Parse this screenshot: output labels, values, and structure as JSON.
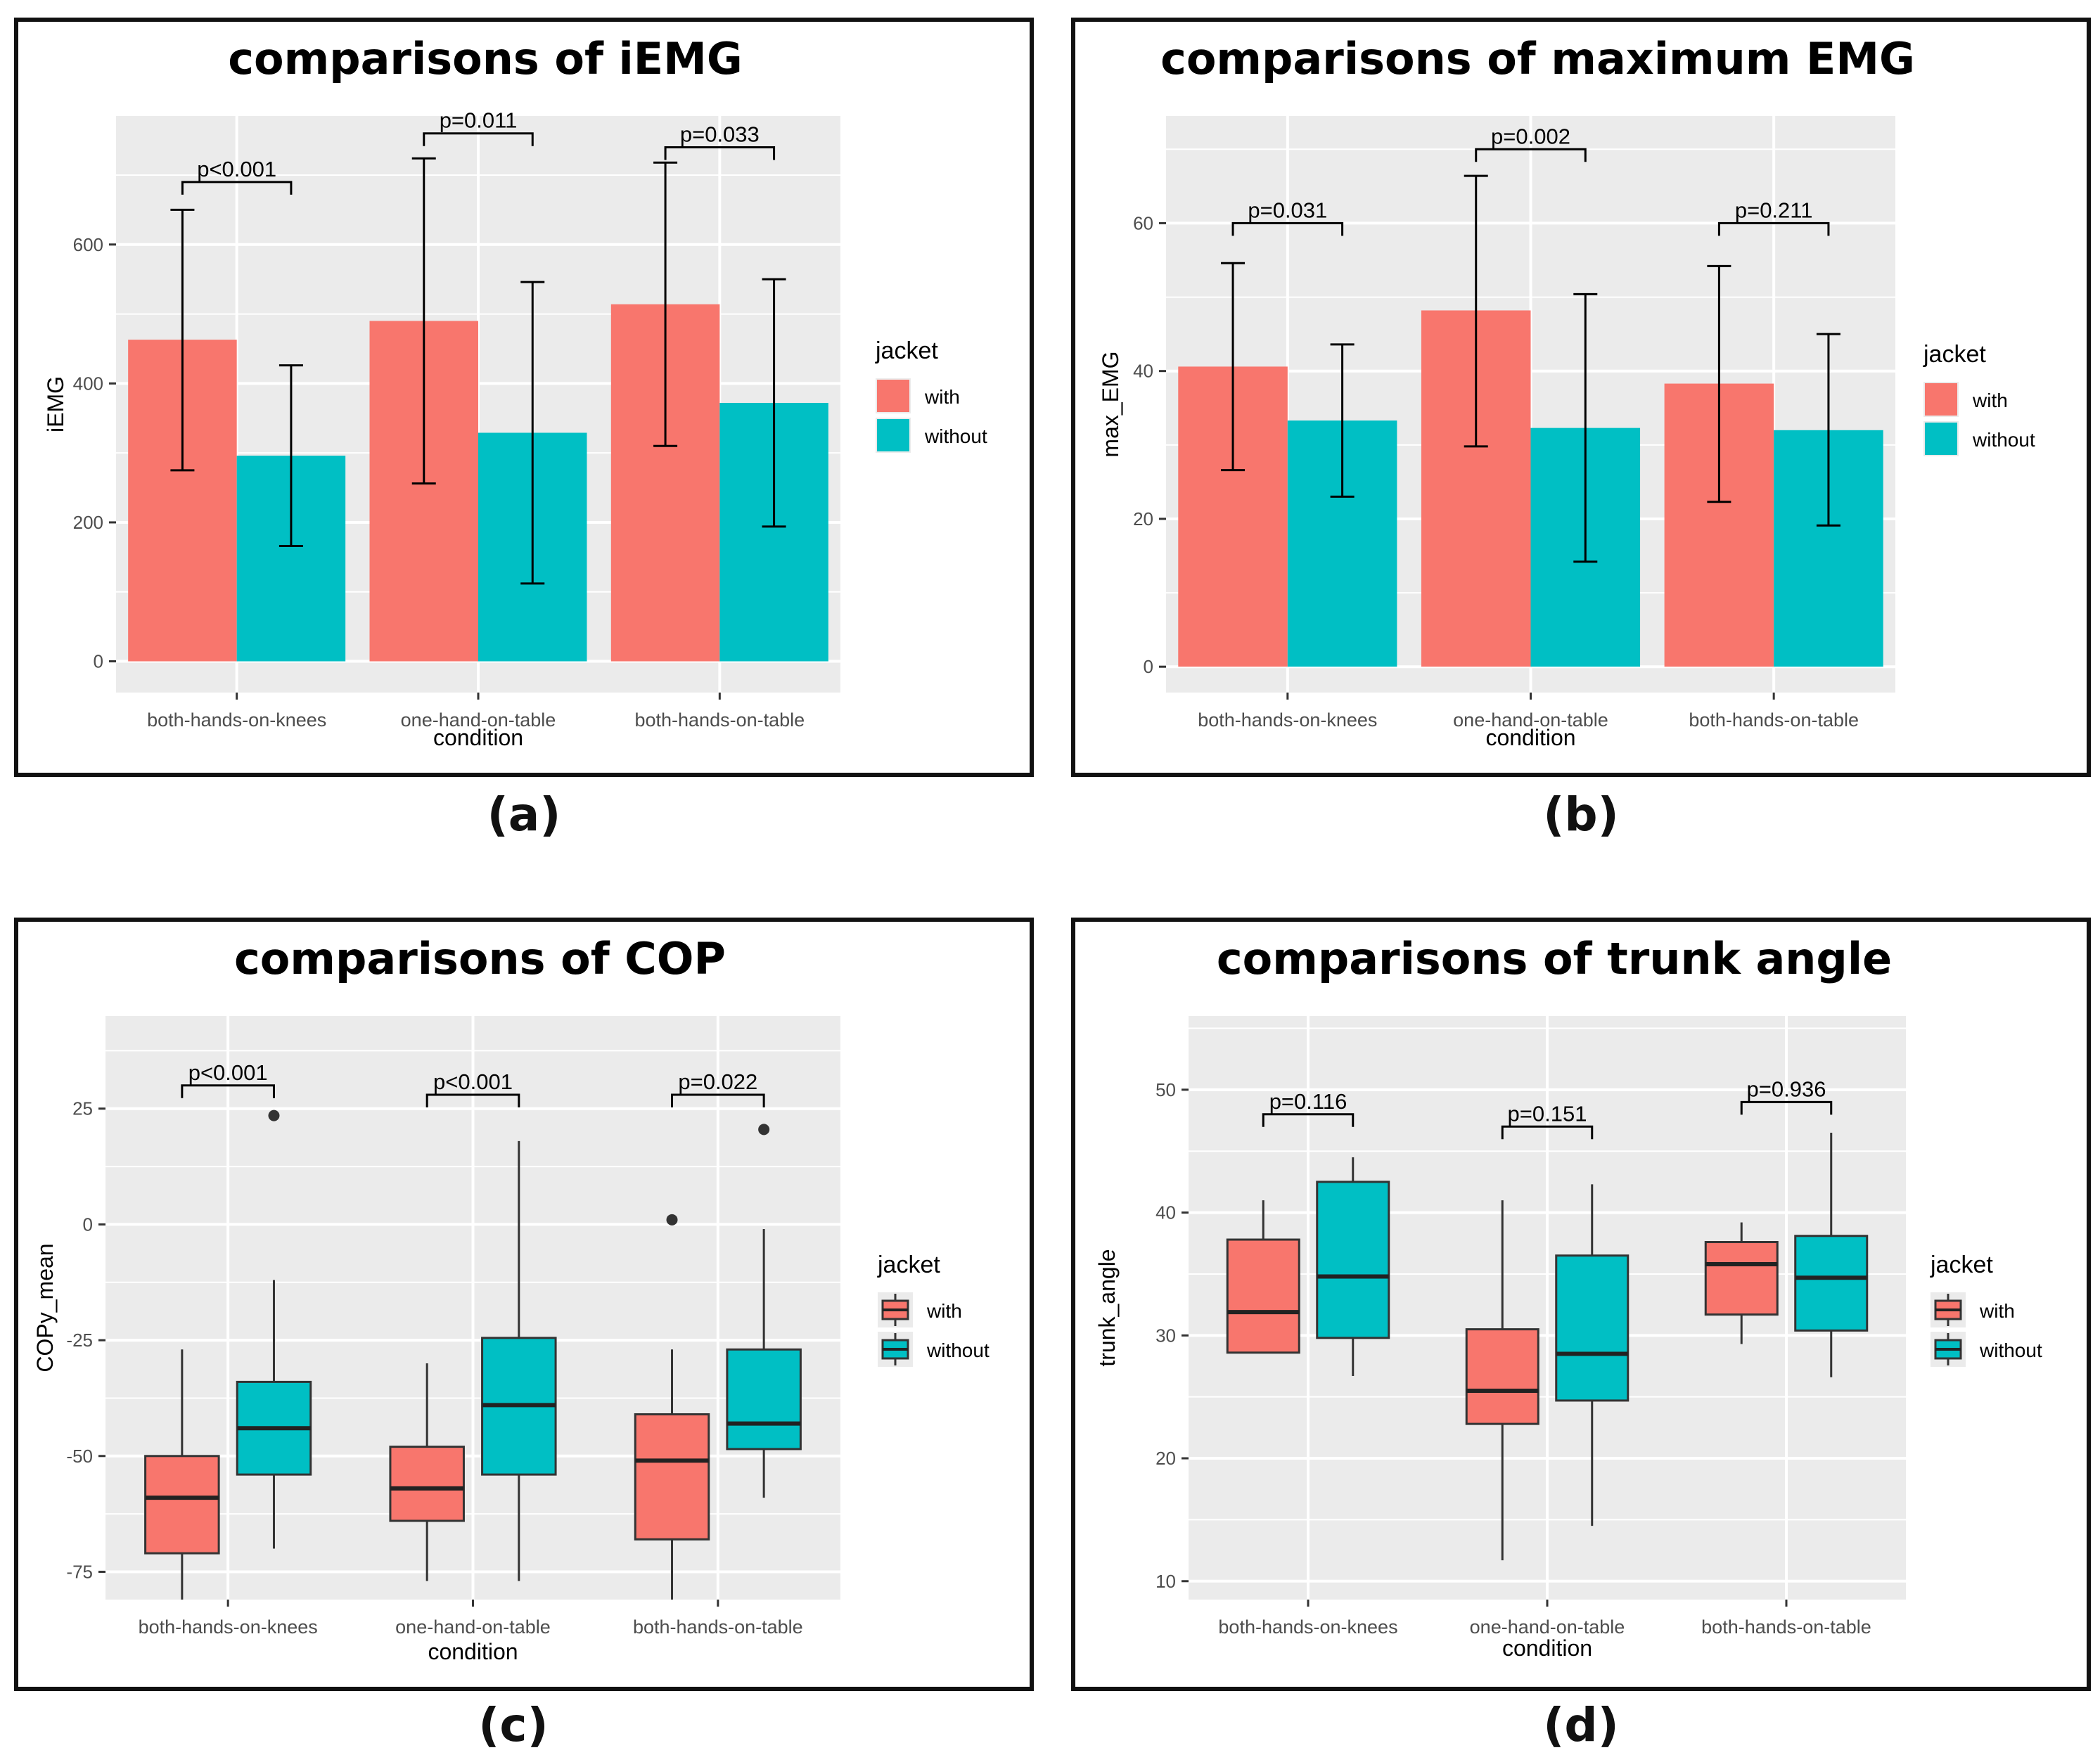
{
  "colors": {
    "with": "#F8766D",
    "without": "#00BFC4",
    "panel": "#EBEBEB",
    "grid": "#FFFFFF",
    "ink": "#111111",
    "axis_text": "#4D4D4D"
  },
  "captions": [
    "(a)",
    "(b)",
    "(c)",
    "(d)"
  ],
  "chart_data": [
    {
      "id": "a",
      "type": "bar",
      "title": "comparisons of iEMG",
      "xlabel": "condition",
      "ylabel": "iEMG",
      "categories": [
        "both-hands-on-knees",
        "one-hand-on-table",
        "both-hands-on-table"
      ],
      "ylim": [
        -45,
        785
      ],
      "yticks": [
        0,
        200,
        400,
        600
      ],
      "ytick_labels": [
        "0",
        "200",
        "400",
        "600"
      ],
      "legend": {
        "title": "jacket",
        "labels": [
          "with",
          "without"
        ],
        "position": "right"
      },
      "series": [
        {
          "name": "with",
          "values": [
            463,
            490,
            514
          ],
          "err_low": [
            275,
            256,
            310
          ],
          "err_high": [
            650,
            724,
            718
          ]
        },
        {
          "name": "without",
          "values": [
            296,
            329,
            372
          ],
          "err_low": [
            166,
            112,
            194
          ],
          "err_high": [
            426,
            546,
            550
          ]
        }
      ],
      "annotations": [
        {
          "text": "p<0.001",
          "category": 0,
          "y": 690
        },
        {
          "text": "p=0.011",
          "category": 1,
          "y": 760
        },
        {
          "text": "p=0.033",
          "category": 2,
          "y": 740
        }
      ]
    },
    {
      "id": "b",
      "type": "bar",
      "title": "comparisons of maximum EMG",
      "xlabel": "condition",
      "ylabel": "max_EMG",
      "categories": [
        "both-hands-on-knees",
        "one-hand-on-table",
        "both-hands-on-table"
      ],
      "ylim": [
        -3.5,
        74.5
      ],
      "yticks": [
        0,
        20,
        40,
        60
      ],
      "ytick_labels": [
        "0",
        "20",
        "40",
        "60"
      ],
      "legend": {
        "title": "jacket",
        "labels": [
          "with",
          "without"
        ],
        "position": "right"
      },
      "series": [
        {
          "name": "with",
          "values": [
            40.6,
            48.2,
            38.3
          ],
          "err_low": [
            26.6,
            29.8,
            22.3
          ],
          "err_high": [
            54.6,
            66.4,
            54.2
          ]
        },
        {
          "name": "without",
          "values": [
            33.3,
            32.3,
            32.0
          ],
          "err_low": [
            23.0,
            14.2,
            19.1
          ],
          "err_high": [
            43.6,
            50.4,
            45.0
          ]
        }
      ],
      "annotations": [
        {
          "text": "p=0.031",
          "category": 0,
          "y": 60.0
        },
        {
          "text": "p=0.002",
          "category": 1,
          "y": 70.0
        },
        {
          "text": "p=0.211",
          "category": 2,
          "y": 60.0
        }
      ]
    },
    {
      "id": "c",
      "type": "box",
      "title": "comparisons of COP",
      "xlabel": "condition",
      "ylabel": "COPy_mean",
      "categories": [
        "both-hands-on-knees",
        "one-hand-on-table",
        "both-hands-on-table"
      ],
      "ylim": [
        -81,
        45
      ],
      "yticks": [
        -75,
        -50,
        -25,
        0,
        25
      ],
      "ytick_labels": [
        "-75",
        "-50",
        "-25",
        "0",
        "25"
      ],
      "legend": {
        "title": "jacket",
        "labels": [
          "with",
          "without"
        ],
        "position": "right"
      },
      "series": [
        {
          "name": "with",
          "boxes": [
            {
              "min": -81,
              "q1": -71,
              "median": -59,
              "q3": -50,
              "max": -27,
              "outliers": []
            },
            {
              "min": -77,
              "q1": -64,
              "median": -57,
              "q3": -48,
              "max": -30,
              "outliers": []
            },
            {
              "min": -81,
              "q1": -68,
              "median": -51,
              "q3": -41,
              "max": -27,
              "outliers": [
                1
              ]
            }
          ]
        },
        {
          "name": "without",
          "boxes": [
            {
              "min": -70,
              "q1": -54,
              "median": -44,
              "q3": -34,
              "max": -12,
              "outliers": [
                23.5
              ]
            },
            {
              "min": -77,
              "q1": -54,
              "median": -39,
              "q3": -24.5,
              "max": 18,
              "outliers": []
            },
            {
              "min": -59,
              "q1": -48.5,
              "median": -43,
              "q3": -27,
              "max": -1,
              "outliers": [
                20.5
              ]
            }
          ]
        }
      ],
      "annotations": [
        {
          "text": "p<0.001",
          "category": 0,
          "y": 30
        },
        {
          "text": "p<0.001",
          "category": 1,
          "y": 28
        },
        {
          "text": "p=0.022",
          "category": 2,
          "y": 28
        }
      ]
    },
    {
      "id": "d",
      "type": "box",
      "title": "comparisons of trunk angle",
      "xlabel": "condition",
      "ylabel": "trunk_angle",
      "categories": [
        "both-hands-on-knees",
        "one-hand-on-table",
        "both-hands-on-table"
      ],
      "ylim": [
        8.5,
        56
      ],
      "yticks": [
        10,
        20,
        30,
        40,
        50
      ],
      "ytick_labels": [
        "10",
        "20",
        "30",
        "40",
        "50"
      ],
      "legend": {
        "title": "jacket",
        "labels": [
          "with",
          "without"
        ],
        "position": "right"
      },
      "series": [
        {
          "name": "with",
          "boxes": [
            {
              "min": 28.6,
              "q1": 28.6,
              "median": 31.9,
              "q3": 37.8,
              "max": 41.0,
              "outliers": []
            },
            {
              "min": 11.7,
              "q1": 22.8,
              "median": 25.5,
              "q3": 30.5,
              "max": 41.0,
              "outliers": []
            },
            {
              "min": 29.3,
              "q1": 31.7,
              "median": 35.8,
              "q3": 37.6,
              "max": 39.2,
              "outliers": []
            }
          ]
        },
        {
          "name": "without",
          "boxes": [
            {
              "min": 26.7,
              "q1": 29.8,
              "median": 34.8,
              "q3": 42.5,
              "max": 44.5,
              "outliers": []
            },
            {
              "min": 14.5,
              "q1": 24.7,
              "median": 28.5,
              "q3": 36.5,
              "max": 42.3,
              "outliers": []
            },
            {
              "min": 26.6,
              "q1": 30.4,
              "median": 34.7,
              "q3": 38.1,
              "max": 46.5,
              "outliers": []
            }
          ]
        }
      ],
      "annotations": [
        {
          "text": "p=0.116",
          "category": 0,
          "y": 48.0
        },
        {
          "text": "p=0.151",
          "category": 1,
          "y": 47.0
        },
        {
          "text": "p=0.936",
          "category": 2,
          "y": 49.0
        }
      ]
    }
  ]
}
